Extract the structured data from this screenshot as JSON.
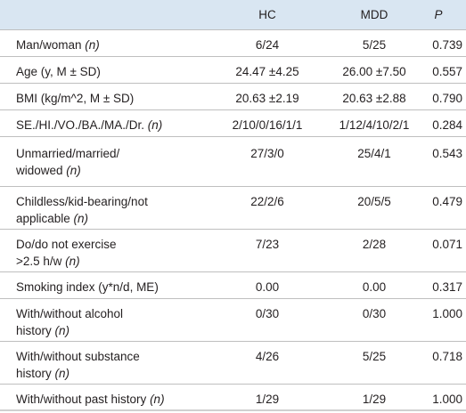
{
  "table": {
    "headers": {
      "label": "",
      "hc": "HC",
      "mdd": "MDD",
      "p": "P"
    },
    "rows": [
      {
        "label": "Man/woman ",
        "unit": "(n)",
        "hc": "6/24",
        "mdd": "5/25",
        "p": "0.739"
      },
      {
        "label": "Age (y, M ± SD)",
        "unit": "",
        "hc": "24.47 ±4.25",
        "mdd": "26.00 ±7.50",
        "p": "0.557"
      },
      {
        "label": "BMI (kg/m^2, M ± SD)",
        "unit": "",
        "hc": "20.63 ±2.19",
        "mdd": "20.63 ±2.88",
        "p": "0.790"
      },
      {
        "label": "SE./HI./VO./BA./MA./Dr. ",
        "unit": "(n)",
        "hc": "2/10/0/16/1/1",
        "mdd": "1/12/4/10/2/1",
        "p": "0.284"
      },
      {
        "label_line1": "Unmarried/married/",
        "label_line2": "widowed ",
        "unit": "(n)",
        "hc": "27/3/0",
        "mdd": "25/4/1",
        "p": "0.543"
      },
      {
        "label_line1": "Childless/kid-bearing/not",
        "label_line2": "applicable ",
        "unit": "(n)",
        "hc": "22/2/6",
        "mdd": "20/5/5",
        "p": "0.479"
      },
      {
        "label_line1": "Do/do not exercise",
        "label_line2": ">2.5 h/w ",
        "unit": "(n)",
        "hc": "7/23",
        "mdd": "2/28",
        "p": "0.071"
      },
      {
        "label": "Smoking index (y*n/d, ME)",
        "unit": "",
        "hc": "0.00",
        "mdd": "0.00",
        "p": "0.317"
      },
      {
        "label_line1": "With/without alcohol",
        "label_line2": "history ",
        "unit": "(n)",
        "hc": "0/30",
        "mdd": "0/30",
        "p": "1.000"
      },
      {
        "label_line1": "With/without substance",
        "label_line2": "history ",
        "unit": "(n)",
        "hc": "4/26",
        "mdd": "5/25",
        "p": "0.718"
      },
      {
        "label": "With/without past history ",
        "unit": "(n)",
        "hc": "1/29",
        "mdd": "1/29",
        "p": "1.000"
      }
    ]
  },
  "colors": {
    "header_bg": "#d9e6f2",
    "rule": "#bfbfbf",
    "text": "#231f20"
  }
}
